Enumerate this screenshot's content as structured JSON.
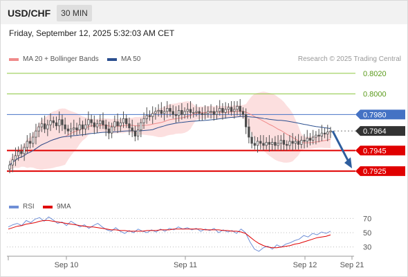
{
  "header": {
    "pair": "USD/CHF",
    "timeframe": "30 MIN"
  },
  "timestamp": "Friday, September 12, 2025 5:32:03 AM CET",
  "legend": {
    "ma20": "MA 20 + Bollinger Bands",
    "ma50": "MA 50",
    "rsi": "RSI",
    "ma9": "9MA"
  },
  "credit": "Research © 2025 Trading Central",
  "colors": {
    "ma20": "#f08a8a",
    "ma50": "#2b4f8f",
    "band_fill": "#fbd9d9",
    "green": "#8cc63f",
    "blue_level": "#4472c4",
    "red_level": "#e00000",
    "candle": "#4d4d4d",
    "arrow": "#2e5e9e",
    "rsi": "#6f8fd6",
    "rsi_ma": "#e00000",
    "current": "#333333"
  },
  "chart_data": [
    {
      "type": "candlestick",
      "title": "USD/CHF 30 MIN",
      "ylim": [
        0.7915,
        0.8028
      ],
      "x_tick_labels": [
        "Sep 10",
        "Sep 11",
        "Sep 12",
        "Sep 21"
      ],
      "levels": [
        {
          "label": "0.8020",
          "value": 0.802,
          "kind": "green"
        },
        {
          "label": "0.8000",
          "value": 0.8,
          "kind": "green"
        },
        {
          "label": "0.7980",
          "value": 0.798,
          "kind": "blue"
        },
        {
          "label": "0.7964",
          "value": 0.7964,
          "kind": "current"
        },
        {
          "label": "0.7945",
          "value": 0.7945,
          "kind": "red"
        },
        {
          "label": "0.7925",
          "value": 0.7925,
          "kind": "red"
        }
      ],
      "close_series": [
        0.7931,
        0.7936,
        0.794,
        0.7944,
        0.7942,
        0.7948,
        0.7954,
        0.7952,
        0.7958,
        0.7964,
        0.7968,
        0.7971,
        0.7966,
        0.797,
        0.7974,
        0.7972,
        0.7969,
        0.7975,
        0.797,
        0.7966,
        0.7964,
        0.7966,
        0.7967,
        0.7965,
        0.797,
        0.7966,
        0.797,
        0.7975,
        0.7972,
        0.7968,
        0.7971,
        0.7974,
        0.797,
        0.7966,
        0.7962,
        0.7968,
        0.7973,
        0.7969,
        0.7972,
        0.7976,
        0.7971,
        0.7967,
        0.7964,
        0.7959,
        0.7965,
        0.7972,
        0.7976,
        0.7979,
        0.7978,
        0.7981,
        0.7983,
        0.7984,
        0.7981,
        0.7983,
        0.7986,
        0.7983,
        0.798,
        0.7979,
        0.7984,
        0.798,
        0.7983,
        0.7985,
        0.7982,
        0.7982,
        0.7983,
        0.7981,
        0.798,
        0.7981,
        0.7983,
        0.7983,
        0.798,
        0.7983,
        0.7986,
        0.7982,
        0.7985,
        0.7987,
        0.7983,
        0.7985,
        0.7988,
        0.7983,
        0.798,
        0.7968,
        0.7958,
        0.7952,
        0.795,
        0.7954,
        0.7952,
        0.795,
        0.7953,
        0.7951,
        0.7953,
        0.795,
        0.7952,
        0.7955,
        0.7951,
        0.795,
        0.7954,
        0.7952,
        0.7954,
        0.7951,
        0.7955,
        0.7954,
        0.7957,
        0.7955,
        0.7958,
        0.796,
        0.7959,
        0.7962,
        0.7961,
        0.7963,
        0.7964
      ],
      "forecast": {
        "from": 0.7964,
        "to": 0.7925,
        "direction": "down"
      }
    },
    {
      "type": "line",
      "title": "RSI",
      "ylim": [
        20,
        80
      ],
      "y_ticks": [
        70,
        50,
        30
      ],
      "series": [
        {
          "name": "RSI",
          "values": [
            58,
            61,
            63,
            60,
            67,
            64,
            69,
            71,
            66,
            72,
            68,
            63,
            65,
            60,
            66,
            62,
            58,
            61,
            56,
            60,
            63,
            58,
            54,
            52,
            57,
            52,
            49,
            53,
            50,
            55,
            52,
            50,
            54,
            51,
            55,
            52,
            56,
            54,
            58,
            55,
            57,
            54,
            56,
            52,
            55,
            53,
            56,
            50,
            54,
            51,
            53,
            49,
            55,
            50,
            37,
            27,
            24,
            29,
            31,
            27,
            33,
            30,
            34,
            36,
            39,
            41,
            46,
            44,
            49,
            47,
            51,
            49,
            52
          ]
        },
        {
          "name": "9MA",
          "values": [
            55,
            57,
            59,
            60,
            62,
            63,
            64,
            66,
            67,
            67,
            66,
            65,
            64,
            63,
            62,
            61,
            60,
            59,
            58,
            58,
            57,
            56,
            55,
            54,
            54,
            53,
            53,
            52,
            52,
            52,
            52,
            53,
            53,
            53,
            54,
            54,
            54,
            55,
            55,
            55,
            55,
            55,
            55,
            55,
            54,
            54,
            54,
            54,
            53,
            53,
            52,
            52,
            51,
            49,
            44,
            39,
            35,
            32,
            30,
            29,
            29,
            30,
            31,
            32,
            34,
            35,
            37,
            39,
            41,
            43,
            44,
            45,
            47
          ]
        }
      ]
    }
  ]
}
